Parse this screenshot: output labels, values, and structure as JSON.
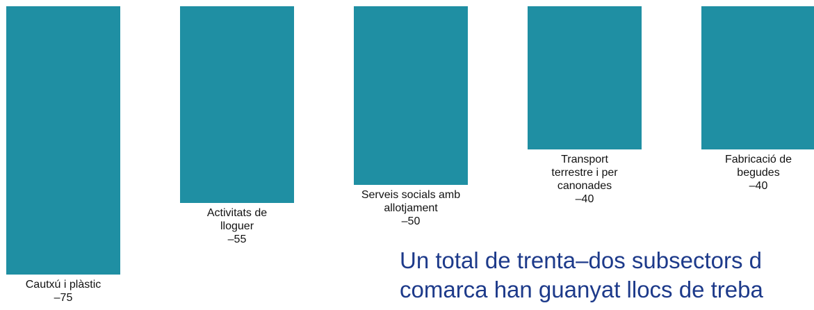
{
  "chart_data": {
    "type": "bar",
    "categories": [
      "Cautxú i plàstic",
      "Activitats de lloguer",
      "Serveis socials amb allotjament",
      "Transport terrestre i per canonades",
      "Fabricació de begudes"
    ],
    "values": [
      -75,
      -55,
      -50,
      -40,
      -40
    ],
    "value_labels": [
      "–75",
      "–55",
      "–50",
      "–40",
      "–40"
    ],
    "color": "#1f8fa3",
    "annotation": [
      "Un total de trenta–dos subsectors d",
      "comarca han guanyat llocs de treba"
    ]
  }
}
